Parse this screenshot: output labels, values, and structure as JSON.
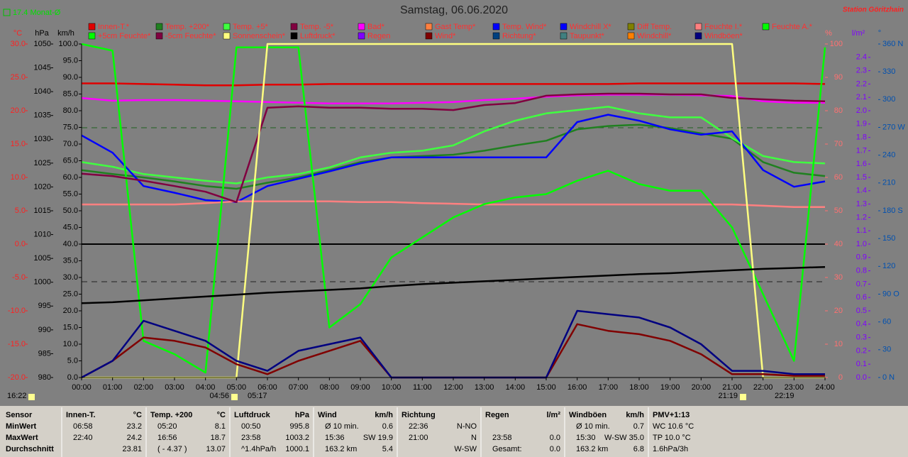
{
  "header": {
    "title": "Samstag, 06.06.2020",
    "station": "Station Göritzhain",
    "month_avg": "17.4 Monat-Ø"
  },
  "annotations": [
    "16:22",
    "04:56",
    "05:17",
    "21:19",
    "22:19"
  ],
  "chart_data": {
    "type": "line",
    "xlim": [
      0,
      24
    ],
    "x": [
      0,
      1,
      2,
      3,
      4,
      5,
      6,
      7,
      8,
      9,
      10,
      11,
      12,
      13,
      14,
      15,
      16,
      17,
      18,
      19,
      20,
      21,
      22,
      23,
      24
    ],
    "xticks": [
      {
        "value": 0,
        "label": "00:00"
      },
      {
        "value": 1,
        "label": "01:00"
      },
      {
        "value": 2,
        "label": "02:00"
      },
      {
        "value": 3,
        "label": "03:00"
      },
      {
        "value": 4,
        "label": "04:00"
      },
      {
        "value": 5,
        "label": "05:00"
      },
      {
        "value": 6,
        "label": "06:00"
      },
      {
        "value": 7,
        "label": "07:00"
      },
      {
        "value": 8,
        "label": "08:00"
      },
      {
        "value": 9,
        "label": "09:00"
      },
      {
        "value": 10,
        "label": "10:00"
      },
      {
        "value": 11,
        "label": "11:00"
      },
      {
        "value": 12,
        "label": "12:00"
      },
      {
        "value": 13,
        "label": "13:00"
      },
      {
        "value": 14,
        "label": "14:00"
      },
      {
        "value": 15,
        "label": "15:00"
      },
      {
        "value": 16,
        "label": "16:00"
      },
      {
        "value": 17,
        "label": "17:00"
      },
      {
        "value": 18,
        "label": "18:00"
      },
      {
        "value": 19,
        "label": "19:00"
      },
      {
        "value": 20,
        "label": "20:00"
      },
      {
        "value": 21,
        "label": "21:00"
      },
      {
        "value": 22,
        "label": "22:00"
      },
      {
        "value": 23,
        "label": "23:00"
      },
      {
        "value": 24,
        "label": "24:00"
      }
    ],
    "axes": [
      {
        "unit": "°C",
        "color": "#ff2020",
        "lim": [
          -20,
          30
        ],
        "ticks": [
          {
            "value": 30,
            "label": "30.0"
          },
          {
            "value": 25,
            "label": "25.0"
          },
          {
            "value": 20,
            "label": "20.0"
          },
          {
            "value": 15,
            "label": "15.0"
          },
          {
            "value": 10,
            "label": "10.0"
          },
          {
            "value": 5,
            "label": "5.0"
          },
          {
            "value": 0,
            "label": "0.0"
          },
          {
            "value": -5,
            "label": "-5.0"
          },
          {
            "value": -10,
            "label": "-10.0"
          },
          {
            "value": -15,
            "label": "-15.0"
          },
          {
            "value": -20,
            "label": "-20.0"
          }
        ]
      },
      {
        "unit": "hPa",
        "color": "#000000",
        "lim": [
          980,
          1050
        ],
        "ticks": [
          1050,
          1045,
          1040,
          1035,
          1030,
          1025,
          1020,
          1015,
          1010,
          1005,
          1000,
          995,
          990,
          985,
          980
        ]
      },
      {
        "unit": "km/h",
        "color": "#000000",
        "lim": [
          0,
          100
        ],
        "ticks": [
          {
            "value": 100,
            "label": "100.0"
          },
          {
            "value": 95,
            "label": "95.0"
          },
          {
            "value": 90,
            "label": "90.0"
          },
          {
            "value": 85,
            "label": "85.0"
          },
          {
            "value": 80,
            "label": "80.0"
          },
          {
            "value": 75,
            "label": "75.0"
          },
          {
            "value": 70,
            "label": "70.0"
          },
          {
            "value": 65,
            "label": "65.0"
          },
          {
            "value": 60,
            "label": "60.0"
          },
          {
            "value": 55,
            "label": "55.0"
          },
          {
            "value": 50,
            "label": "50.0"
          },
          {
            "value": 45,
            "label": "45.0"
          },
          {
            "value": 40,
            "label": "40.0"
          },
          {
            "value": 35,
            "label": "35.0"
          },
          {
            "value": 30,
            "label": "30.0"
          },
          {
            "value": 25,
            "label": "25.0"
          },
          {
            "value": 20,
            "label": "20.0"
          },
          {
            "value": 15,
            "label": "15.0"
          },
          {
            "value": 10,
            "label": "10.0"
          },
          {
            "value": 5,
            "label": "5.0"
          },
          {
            "value": 0,
            "label": "0.0"
          }
        ]
      },
      {
        "unit": "%",
        "color": "#ff7070",
        "lim": [
          0,
          100
        ],
        "ticks": [
          100,
          90,
          80,
          70,
          60,
          50,
          40,
          30,
          20,
          10,
          0
        ]
      },
      {
        "unit": "l/m²",
        "color": "#8000ff",
        "lim": [
          0,
          2.5
        ],
        "ticks": [
          {
            "value": 2.4,
            "label": "2.4"
          },
          {
            "value": 2.3,
            "label": "2.3"
          },
          {
            "value": 2.2,
            "label": "2.2"
          },
          {
            "value": 2.1,
            "label": "2.1"
          },
          {
            "value": 2,
            "label": "2.0"
          },
          {
            "value": 1.9,
            "label": "1.9"
          },
          {
            "value": 1.8,
            "label": "1.8"
          },
          {
            "value": 1.7,
            "label": "1.7"
          },
          {
            "value": 1.6,
            "label": "1.6"
          },
          {
            "value": 1.5,
            "label": "1.5"
          },
          {
            "value": 1.4,
            "label": "1.4"
          },
          {
            "value": 1.3,
            "label": "1.3"
          },
          {
            "value": 1.2,
            "label": "1.2"
          },
          {
            "value": 1.1,
            "label": "1.1"
          },
          {
            "value": 1,
            "label": "1.0"
          },
          {
            "value": 0.9,
            "label": "0.9"
          },
          {
            "value": 0.8,
            "label": "0.8"
          },
          {
            "value": 0.7,
            "label": "0.7"
          },
          {
            "value": 0.6,
            "label": "0.6"
          },
          {
            "value": 0.5,
            "label": "0.5"
          },
          {
            "value": 0.4,
            "label": "0.4"
          },
          {
            "value": 0.3,
            "label": "0.3"
          },
          {
            "value": 0.2,
            "label": "0.2"
          },
          {
            "value": 0.1,
            "label": "0.1"
          },
          {
            "value": 0,
            "label": "0.0"
          }
        ]
      },
      {
        "unit": "°",
        "color": "#0050b0",
        "lim": [
          0,
          360
        ],
        "ticks": [
          {
            "value": 360,
            "label": "360 N"
          },
          330,
          300,
          {
            "value": 270,
            "label": "270 W"
          },
          240,
          210,
          {
            "value": 180,
            "label": "180 S"
          },
          150,
          120,
          {
            "value": 90,
            "label": "90 O"
          },
          60,
          30,
          {
            "value": 0,
            "label": "0 N"
          }
        ]
      }
    ],
    "series": [
      {
        "name": "Innen-T.*",
        "color": "#e00000",
        "axis": 0,
        "values": [
          24.1,
          24.1,
          24.0,
          23.9,
          23.8,
          23.8,
          23.9,
          23.9,
          24.0,
          24.0,
          24.0,
          24.0,
          24.0,
          24.0,
          24.0,
          24.0,
          24.0,
          24.0,
          24.1,
          24.1,
          24.1,
          24.1,
          24.1,
          24.1,
          24.0
        ]
      },
      {
        "name": "Temp. +200*",
        "color": "#208020",
        "axis": 0,
        "values": [
          11.1,
          10.5,
          10.0,
          9.4,
          8.7,
          8.3,
          9.2,
          10.0,
          11.1,
          12.3,
          13.0,
          13.2,
          13.4,
          14.0,
          14.8,
          15.5,
          17.2,
          17.7,
          17.9,
          17.4,
          16.6,
          15.8,
          12.3,
          10.7,
          10.2
        ]
      },
      {
        "name": "Temp. +5*",
        "color": "#40ff40",
        "axis": 0,
        "values": [
          12.3,
          11.6,
          10.5,
          10.0,
          9.5,
          9.1,
          10.0,
          10.5,
          11.5,
          13.0,
          13.7,
          14.0,
          14.8,
          16.9,
          18.5,
          19.6,
          20.1,
          20.6,
          19.6,
          19.0,
          19.0,
          15.9,
          13.2,
          12.3,
          12.1
        ]
      },
      {
        "name": "Temp. -5*",
        "color": "#800040"
      },
      {
        "name": "Bad*",
        "color": "#ff00ff",
        "axis": 0,
        "values": [
          21.9,
          21.5,
          21.6,
          21.6,
          21.5,
          21.4,
          21.3,
          21.2,
          21.1,
          21.1,
          21.1,
          21.2,
          21.3,
          21.6,
          21.8,
          22.1,
          22.3,
          22.4,
          22.4,
          22.4,
          22.3,
          22.2,
          21.4,
          21.2,
          21.2
        ]
      },
      {
        "name": "Gast Temp*",
        "color": "#ff8040"
      },
      {
        "name": "Temp. Wind*",
        "color": "#0000ff"
      },
      {
        "name": "Windchill X*",
        "color": "#0000ff",
        "axis": 0,
        "values": [
          16.3,
          13.7,
          8.7,
          7.7,
          6.6,
          6.3,
          8.7,
          9.8,
          10.9,
          12.1,
          13.0,
          13.0,
          13.0,
          13.0,
          13.0,
          13.0,
          18.3,
          19.4,
          18.5,
          17.2,
          16.4,
          16.9,
          11.1,
          8.6,
          9.4
        ]
      },
      {
        "name": "Diff Temp.",
        "color": "#808000"
      },
      {
        "name": "Feuchte I.*",
        "color": "#ff8080",
        "axis": 3,
        "values": [
          51.9,
          51.9,
          51.9,
          51.9,
          52.3,
          52.8,
          52.8,
          52.8,
          52.8,
          52.6,
          52.6,
          52.3,
          52.1,
          51.9,
          51.9,
          51.9,
          51.9,
          51.9,
          51.9,
          51.9,
          51.9,
          51.9,
          51.5,
          51.1,
          51.1
        ]
      },
      {
        "name": "Feuchte A.*",
        "color": "#00ff00",
        "axis": 3,
        "values": [
          100,
          98,
          11,
          7,
          1.5,
          99,
          99,
          99,
          15,
          22,
          36,
          42,
          48,
          52,
          54,
          55,
          59,
          62,
          58,
          56,
          56,
          45,
          25,
          5,
          99
        ]
      },
      {
        "name": "+5cm Feuchte*",
        "color": "#00ff00"
      },
      {
        "name": "-5cm Feuchte*",
        "color": "#800040",
        "axis": 3,
        "values": [
          61.1,
          60.4,
          59.0,
          57.4,
          55.7,
          52.6,
          80.9,
          81.3,
          80.9,
          80.9,
          80.6,
          80.6,
          80.2,
          81.7,
          82.3,
          84.5,
          84.9,
          85.1,
          85.1,
          84.9,
          84.9,
          83.8,
          83.4,
          83.0,
          82.8
        ]
      },
      {
        "name": "Sonnenschein*",
        "color": "#ffff80",
        "axis": 3,
        "values": [
          0,
          0,
          0,
          0,
          0,
          0,
          100,
          100,
          100,
          100,
          100,
          100,
          100,
          100,
          100,
          100,
          100,
          100,
          100,
          100,
          100,
          100,
          0,
          0,
          0
        ]
      },
      {
        "name": "Luftdruck*",
        "color": "#000000",
        "axis": 1,
        "values": [
          995.6,
          995.8,
          996.2,
          996.6,
          997.0,
          997.4,
          997.8,
          998.1,
          998.4,
          998.7,
          999.2,
          999.6,
          999.9,
          1000.2,
          1000.5,
          1000.8,
          1001.1,
          1001.4,
          1001.7,
          1001.9,
          1002.2,
          1002.5,
          1002.8,
          1003.0,
          1003.2
        ]
      },
      {
        "name": "Regen",
        "color": "#8000ff"
      },
      {
        "name": "Wind*",
        "color": "#800000",
        "axis": 2,
        "values": [
          0,
          5,
          12,
          11,
          9,
          4,
          1,
          5,
          8,
          11,
          0,
          0,
          0,
          0,
          0,
          0,
          16,
          14,
          13,
          11,
          7,
          1,
          1,
          0.5,
          0.5
        ]
      },
      {
        "name": "Richtung*",
        "color": "#004080"
      },
      {
        "name": "Taupunkt*",
        "color": "#408080"
      },
      {
        "name": "Windchill*",
        "color": "#ff8000"
      },
      {
        "name": "Windböen*",
        "color": "#000080",
        "axis": 2,
        "values": [
          0,
          5,
          17,
          14,
          11,
          5,
          2,
          8,
          10,
          12,
          0,
          0,
          0,
          0,
          0,
          0,
          20,
          19,
          18,
          15,
          10,
          2,
          2,
          1,
          1
        ]
      }
    ]
  },
  "table": {
    "columns": [
      {
        "head": [
          "Sensor"
        ],
        "rows": [
          [
            "MinWert"
          ],
          [
            "MaxWert"
          ],
          [
            "Durchschnitt"
          ]
        ]
      },
      {
        "head": [
          "Innen-T.",
          "°C"
        ],
        "rows": [
          [
            "06:58",
            "23.2"
          ],
          [
            "22:40",
            "24.2"
          ],
          [
            null,
            "23.81"
          ]
        ]
      },
      {
        "head": [
          "Temp. +200",
          "°C"
        ],
        "rows": [
          [
            "05:20",
            "8.1"
          ],
          [
            "16:56",
            "18.7"
          ],
          [
            "( - 4.37 )",
            "13.07"
          ]
        ]
      },
      {
        "head": [
          "Luftdruck",
          "hPa"
        ],
        "rows": [
          [
            "00:50",
            "995.8"
          ],
          [
            "23:58",
            "1003.2"
          ],
          [
            "^1.4hPa/h",
            "1000.1"
          ]
        ]
      },
      {
        "head": [
          "Wind",
          "km/h"
        ],
        "rows": [
          [
            "Ø 10 min.",
            "0.6"
          ],
          [
            "15:36",
            "SW 19.9"
          ],
          [
            "163.2 km",
            "5.4"
          ]
        ]
      },
      {
        "head": [
          "Richtung"
        ],
        "rows": [
          [
            "22:36",
            "N-NO"
          ],
          [
            "21:00",
            "N"
          ],
          [
            null,
            "W-SW"
          ]
        ]
      },
      {
        "head": [
          "Regen",
          "l/m²"
        ],
        "rows": [
          [
            null,
            null
          ],
          [
            "23:58",
            "0.0"
          ],
          [
            "Gesamt:",
            "0.0"
          ]
        ]
      },
      {
        "head": [
          "Windböen",
          "km/h"
        ],
        "rows": [
          [
            "Ø 10 min.",
            "0.7"
          ],
          [
            "15:30",
            "W-SW 35.0"
          ],
          [
            "163.2 km",
            "6.8"
          ]
        ]
      },
      {
        "head": [
          "PMV+1:13"
        ],
        "rows": [
          [
            "WC 10.6 °C"
          ],
          [
            "TP 10.0 °C"
          ],
          [
            "1.6hPa/3h"
          ]
        ]
      }
    ]
  }
}
